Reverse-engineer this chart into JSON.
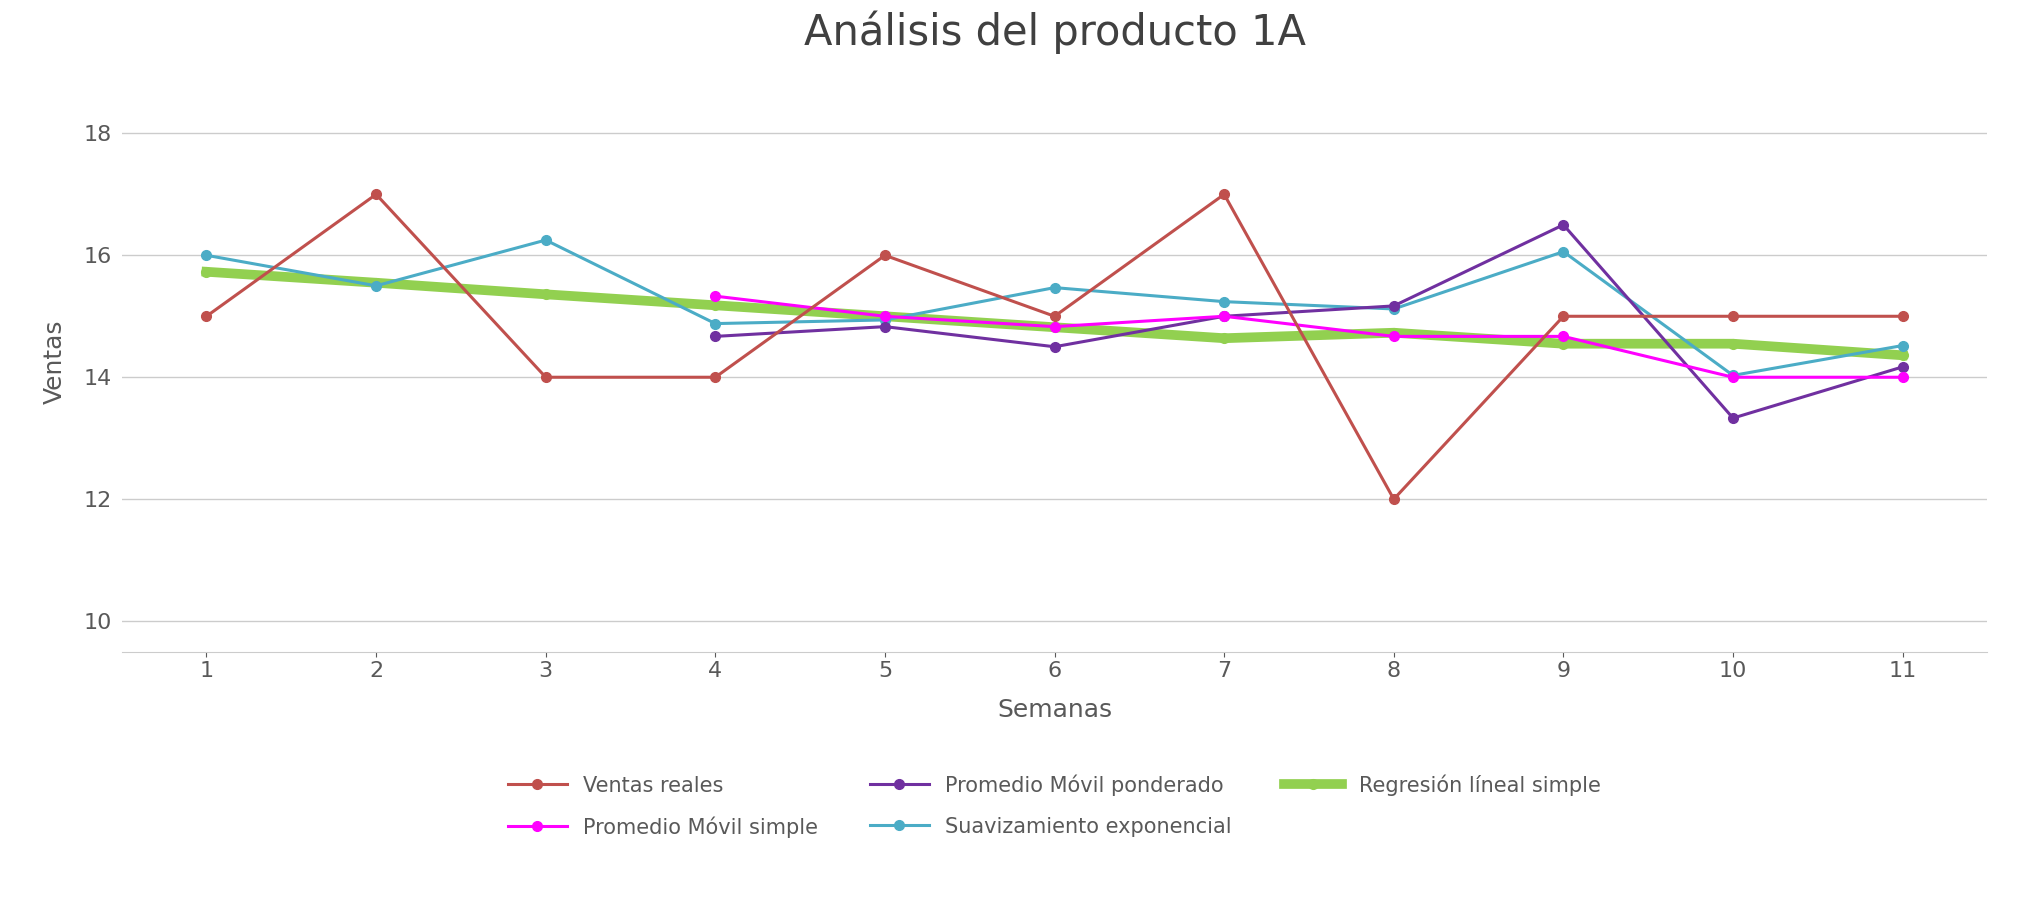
{
  "title": "Análisis del producto 1A",
  "xlabel": "Semanas",
  "ylabel": "Ventas",
  "x": [
    1,
    2,
    3,
    4,
    5,
    6,
    7,
    8,
    9,
    10,
    11
  ],
  "ventas_reales": [
    15,
    17,
    14,
    14,
    16,
    15,
    17,
    12,
    15,
    15,
    15
  ],
  "promedio_movil_simple": [
    null,
    null,
    null,
    15.33,
    15.0,
    14.83,
    15.0,
    14.67,
    14.67,
    14.0,
    14.0
  ],
  "promedio_movil_ponderado": [
    null,
    null,
    null,
    14.67,
    14.83,
    14.5,
    15.0,
    15.17,
    16.5,
    13.33,
    14.17
  ],
  "suavizamiento_exponencial": [
    16.0,
    15.5,
    16.25,
    14.88,
    14.94,
    15.47,
    15.24,
    15.12,
    16.06,
    14.03,
    14.52
  ],
  "regresion_lineal": [
    15.73,
    15.55,
    15.36,
    15.18,
    15.0,
    14.82,
    14.64,
    14.73,
    14.55,
    14.55,
    14.36
  ],
  "colors": {
    "ventas_reales": "#C0504D",
    "promedio_movil_simple": "#FF00FF",
    "promedio_movil_ponderado": "#7030A0",
    "suavizamiento_exponencial": "#4BACC6",
    "regresion_lineal": "#92D050"
  },
  "ylim": [
    9.5,
    19.0
  ],
  "yticks": [
    10,
    12,
    14,
    16,
    18
  ],
  "xticks": [
    1,
    2,
    3,
    4,
    5,
    6,
    7,
    8,
    9,
    10,
    11
  ],
  "title_fontsize": 30,
  "axis_label_fontsize": 18,
  "tick_fontsize": 16,
  "legend_fontsize": 15,
  "linewidth": 2.2,
  "regresion_linewidth": 7.0,
  "markersize": 7,
  "background_color": "#FFFFFF",
  "grid_color": "#CCCCCC",
  "legend_labels": [
    "Ventas reales",
    "Promedio Móvil simple",
    "Promedio Móvil ponderado",
    "Suavizamiento exponencial",
    "Regresión líneal simple"
  ]
}
